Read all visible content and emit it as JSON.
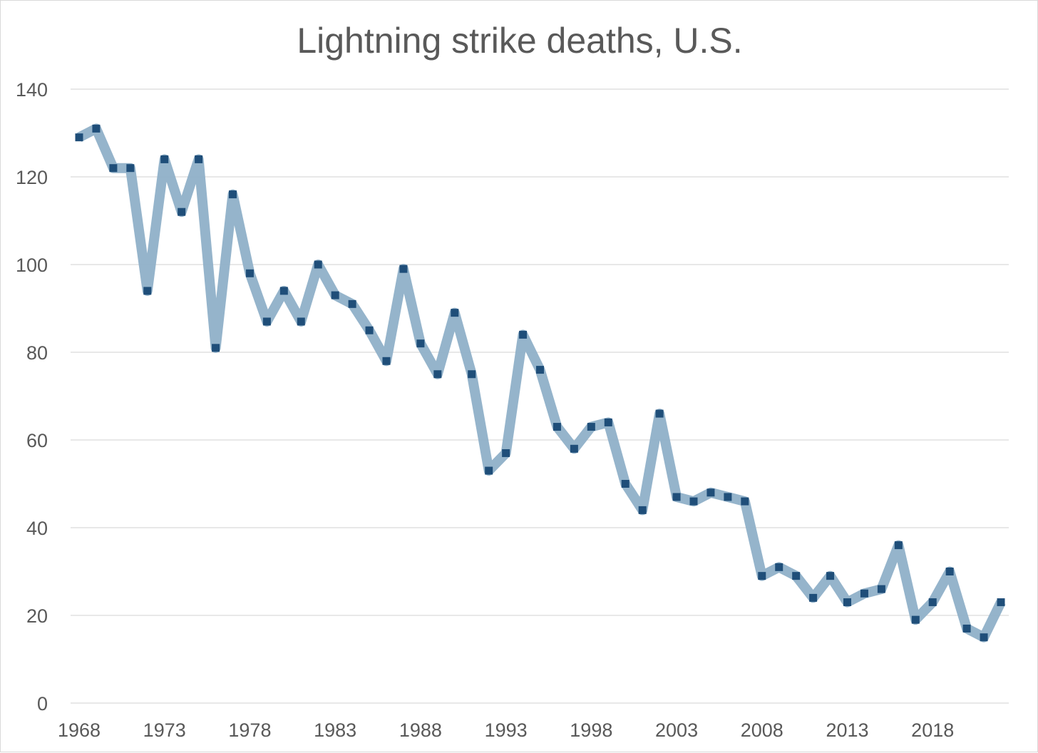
{
  "chart_data": {
    "type": "line",
    "title": "Lightning strike deaths, U.S.",
    "xlabel": "",
    "ylabel": "",
    "x": [
      1968,
      1969,
      1970,
      1971,
      1972,
      1973,
      1974,
      1975,
      1976,
      1977,
      1978,
      1979,
      1980,
      1981,
      1982,
      1983,
      1984,
      1985,
      1986,
      1987,
      1988,
      1989,
      1990,
      1991,
      1992,
      1993,
      1994,
      1995,
      1996,
      1997,
      1998,
      1999,
      2000,
      2001,
      2002,
      2003,
      2004,
      2005,
      2006,
      2007,
      2008,
      2009,
      2010,
      2011,
      2012,
      2013,
      2014,
      2015,
      2016,
      2017,
      2018,
      2019,
      2020,
      2021,
      2022
    ],
    "series": [
      {
        "values": [
          129,
          131,
          122,
          122,
          94,
          124,
          112,
          124,
          81,
          116,
          98,
          87,
          94,
          87,
          100,
          93,
          91,
          85,
          78,
          99,
          82,
          75,
          89,
          75,
          53,
          57,
          84,
          76,
          63,
          58,
          63,
          64,
          50,
          44,
          66,
          47,
          46,
          48,
          47,
          46,
          29,
          31,
          29,
          24,
          29,
          23,
          25,
          26,
          36,
          19,
          23,
          30,
          17,
          15,
          23
        ],
        "line_color": "#8fb0c8",
        "marker_color": "#1f4e79",
        "marker": "square"
      }
    ],
    "ylim": [
      0,
      140
    ],
    "yticks": [
      0,
      20,
      40,
      60,
      80,
      100,
      120,
      140
    ],
    "xlim": [
      1968,
      2022
    ],
    "xticks": [
      1968,
      1973,
      1978,
      1983,
      1988,
      1993,
      1998,
      2003,
      2008,
      2013,
      2018
    ],
    "grid": true,
    "legend": "none"
  }
}
